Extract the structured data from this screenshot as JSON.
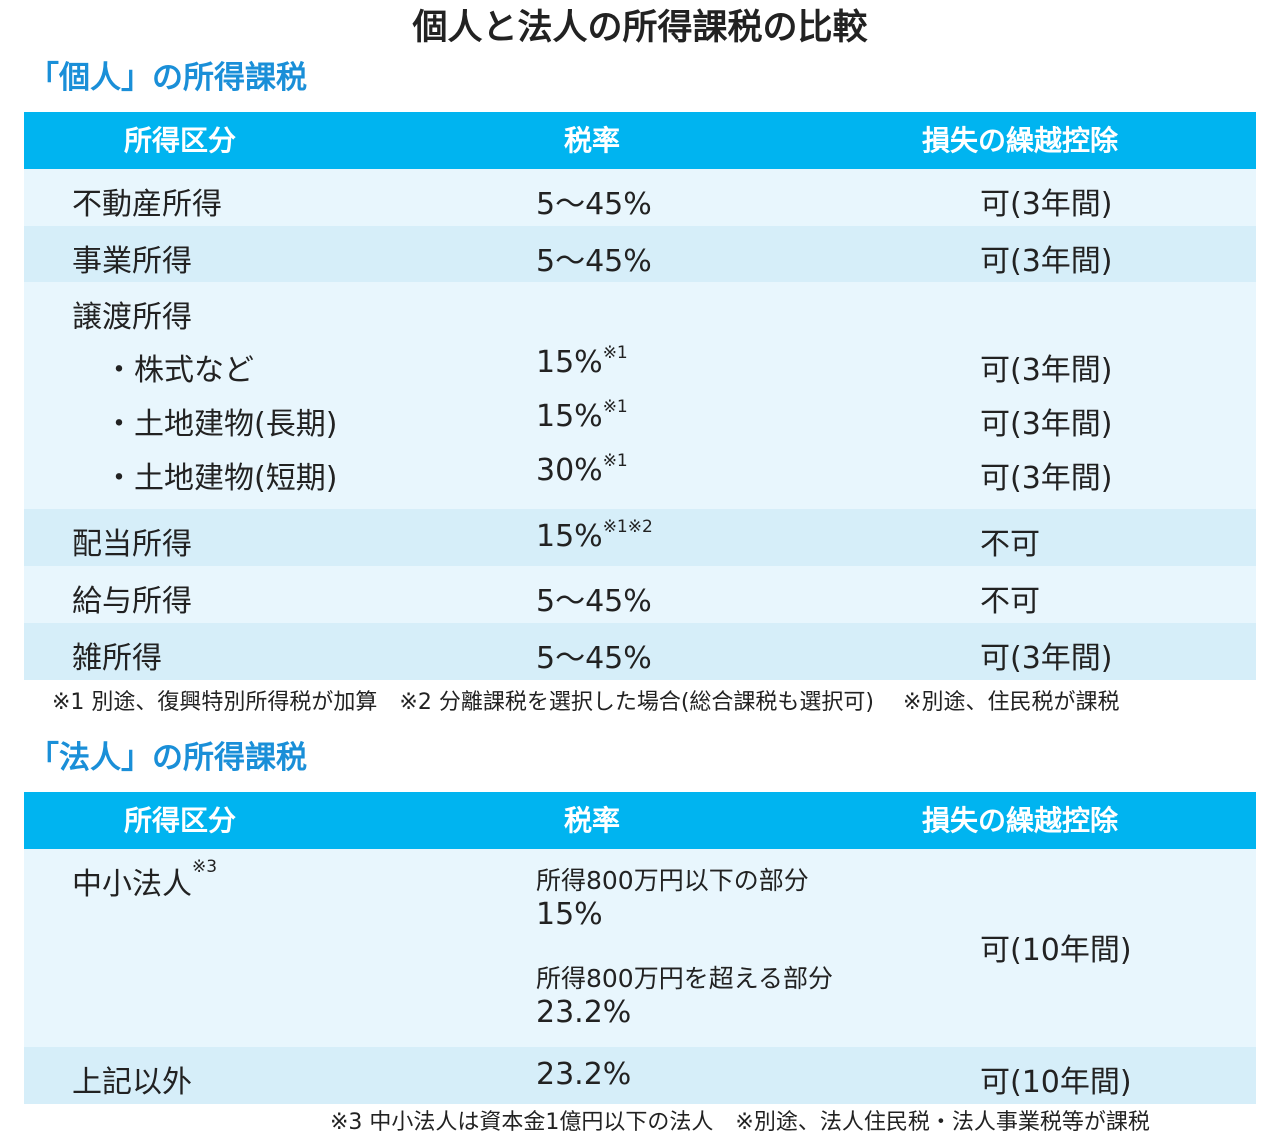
{
  "title": "個人と法人の所得課税の比較",
  "individual": {
    "section_title": "「個人」の所得課税",
    "headers": [
      "所得区分",
      "税率",
      "損失の繰越控除"
    ],
    "rows": [
      {
        "category": "不動産所得",
        "rate": "5〜45%",
        "rate_note": "",
        "carryover": "可(3年間)"
      },
      {
        "category": "事業所得",
        "rate": "5〜45%",
        "rate_note": "",
        "carryover": "可(3年間)"
      },
      {
        "category": "譲渡所得",
        "rate": "",
        "rate_note": "",
        "carryover": ""
      },
      {
        "category": "・株式など",
        "rate": "15%",
        "rate_note": "※1",
        "carryover": "可(3年間)"
      },
      {
        "category": "・土地建物(長期)",
        "rate": "15%",
        "rate_note": "※1",
        "carryover": "可(3年間)"
      },
      {
        "category": "・土地建物(短期)",
        "rate": "30%",
        "rate_note": "※1",
        "carryover": "可(3年間)"
      },
      {
        "category": "配当所得",
        "rate": "15%",
        "rate_note": "※1※2",
        "carryover": "不可"
      },
      {
        "category": "給与所得",
        "rate": "5〜45%",
        "rate_note": "",
        "carryover": "不可"
      },
      {
        "category": "雑所得",
        "rate": "5〜45%",
        "rate_note": "",
        "carryover": "可(3年間)"
      }
    ],
    "footnote": "※1 別途、復興特別所得税が加算　※2 分離課税を選択した場合(総合課税も選択可)　 ※別途、住民税が課税"
  },
  "corporate": {
    "section_title": "「法人」の所得課税",
    "headers": [
      "所得区分",
      "税率",
      "損失の繰越控除"
    ],
    "sme": {
      "category": "中小法人",
      "category_note": "※3",
      "tier1_label": "所得800万円以下の部分",
      "tier1_rate": "15%",
      "tier2_label": "所得800万円を超える部分",
      "tier2_rate": "23.2%",
      "carryover": "可(10年間)"
    },
    "other": {
      "category": "上記以外",
      "rate": "23.2%",
      "carryover": "可(10年間)"
    },
    "footnote": "※3 中小法人は資本金1億円以下の法人　※別途、法人住民税・法人事業税等が課税"
  }
}
